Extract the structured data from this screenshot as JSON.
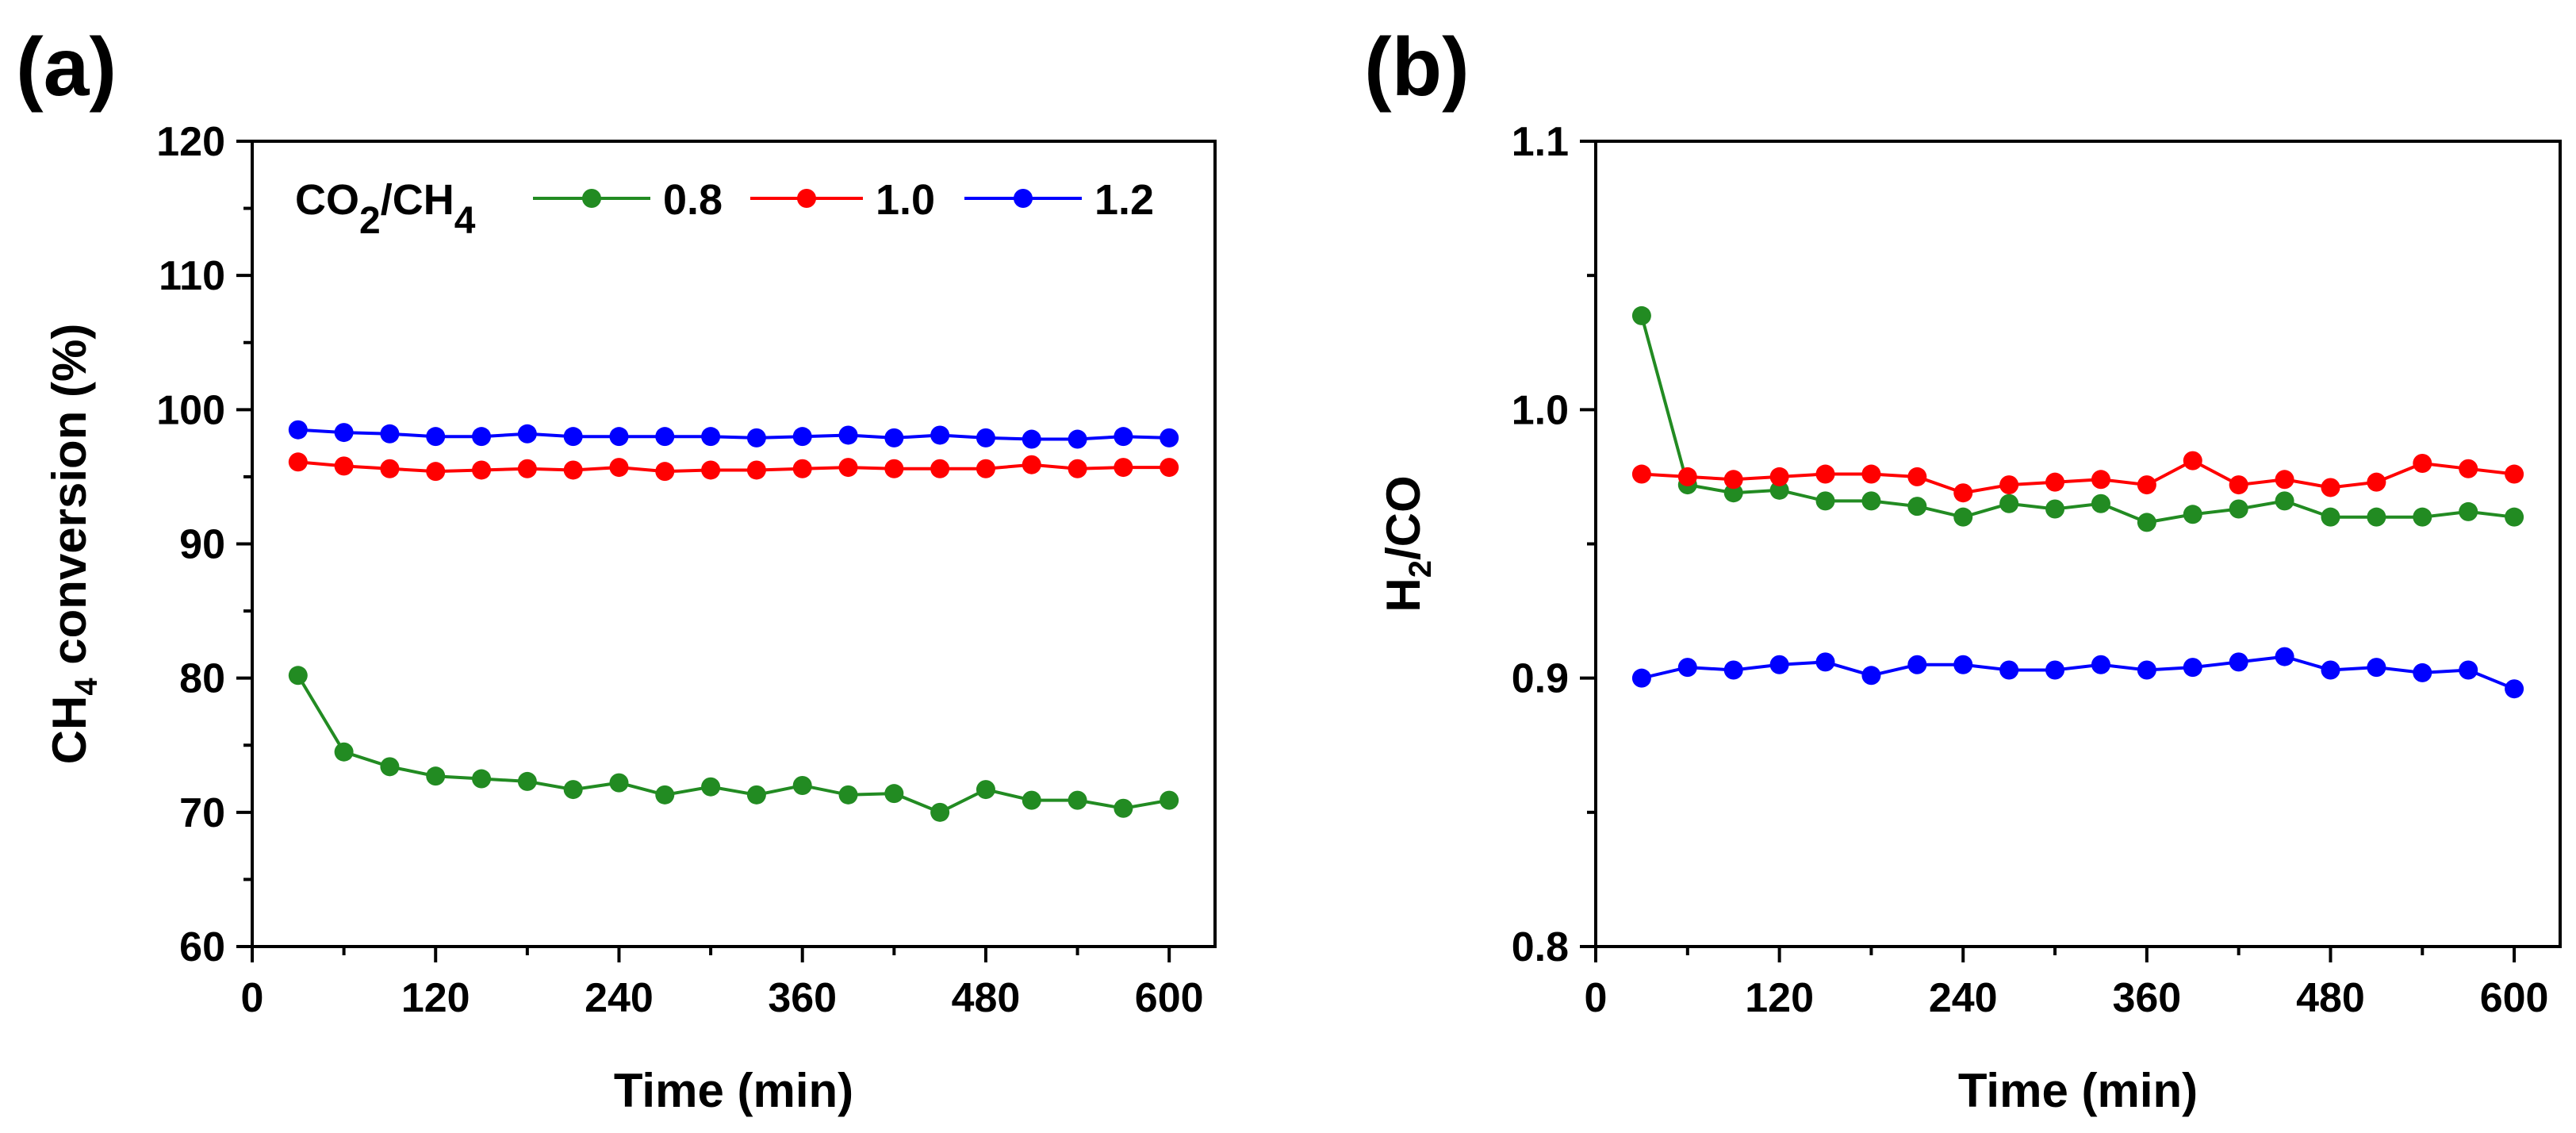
{
  "chart_data": [
    {
      "panel": "(a)",
      "type": "line",
      "xlabel": "Time (min)",
      "ylabel": "CH4 conversion (%)",
      "ylabel_main": "CH",
      "ylabel_sub": "4",
      "ylabel_rest": " conversion (%)",
      "xlim": [
        0,
        630
      ],
      "ylim": [
        60,
        120
      ],
      "xticks": [
        0,
        120,
        240,
        360,
        480,
        600
      ],
      "yticks": [
        60,
        70,
        80,
        90,
        100,
        110,
        120
      ],
      "legend": {
        "title_parts": [
          "CO",
          "2",
          "/CH",
          "4"
        ],
        "placement": "top-left"
      },
      "x": [
        30,
        60,
        90,
        120,
        150,
        180,
        210,
        240,
        270,
        300,
        330,
        360,
        390,
        420,
        450,
        480,
        510,
        540,
        570,
        600
      ],
      "series": [
        {
          "name": "0.8",
          "color": "#228B22",
          "values": [
            80.2,
            74.5,
            73.4,
            72.7,
            72.5,
            72.3,
            71.7,
            72.2,
            71.3,
            71.9,
            71.3,
            72.0,
            71.3,
            71.4,
            70.0,
            71.7,
            70.9,
            70.9,
            70.3,
            70.9
          ]
        },
        {
          "name": "1.0",
          "color": "#FF0000",
          "values": [
            96.1,
            95.8,
            95.6,
            95.4,
            95.5,
            95.6,
            95.5,
            95.7,
            95.4,
            95.5,
            95.5,
            95.6,
            95.7,
            95.6,
            95.6,
            95.6,
            95.9,
            95.6,
            95.7,
            95.7
          ]
        },
        {
          "name": "1.2",
          "color": "#0000FF",
          "values": [
            98.5,
            98.3,
            98.2,
            98.0,
            98.0,
            98.2,
            98.0,
            98.0,
            98.0,
            98.0,
            97.9,
            98.0,
            98.1,
            97.9,
            98.1,
            97.9,
            97.8,
            97.8,
            98.0,
            97.9
          ]
        }
      ]
    },
    {
      "panel": "(b)",
      "type": "line",
      "xlabel": "Time (min)",
      "ylabel": "H2/CO",
      "ylabel_main": "H",
      "ylabel_sub": "2",
      "ylabel_rest": "/CO",
      "xlim": [
        0,
        630
      ],
      "ylim": [
        0.8,
        1.1
      ],
      "xticks": [
        0,
        120,
        240,
        360,
        480,
        600
      ],
      "yticks": [
        0.8,
        0.9,
        1.0,
        1.1
      ],
      "ytick_labels": [
        "0.8",
        "0.9",
        "1.0",
        "1.1"
      ],
      "x": [
        30,
        60,
        90,
        120,
        150,
        180,
        210,
        240,
        270,
        300,
        330,
        360,
        390,
        420,
        450,
        480,
        510,
        540,
        570,
        600
      ],
      "series": [
        {
          "name": "0.8",
          "color": "#228B22",
          "values": [
            1.035,
            0.972,
            0.969,
            0.97,
            0.966,
            0.966,
            0.964,
            0.96,
            0.965,
            0.963,
            0.965,
            0.958,
            0.961,
            0.963,
            0.966,
            0.96,
            0.96,
            0.96,
            0.962,
            0.96
          ]
        },
        {
          "name": "1.0",
          "color": "#FF0000",
          "values": [
            0.976,
            0.975,
            0.974,
            0.975,
            0.976,
            0.976,
            0.975,
            0.969,
            0.972,
            0.973,
            0.974,
            0.972,
            0.981,
            0.972,
            0.974,
            0.971,
            0.973,
            0.98,
            0.978,
            0.976
          ]
        },
        {
          "name": "1.2",
          "color": "#0000FF",
          "values": [
            0.9,
            0.904,
            0.903,
            0.905,
            0.906,
            0.901,
            0.905,
            0.905,
            0.903,
            0.903,
            0.905,
            0.903,
            0.904,
            0.906,
            0.908,
            0.903,
            0.904,
            0.902,
            0.903,
            0.896
          ]
        }
      ]
    }
  ]
}
